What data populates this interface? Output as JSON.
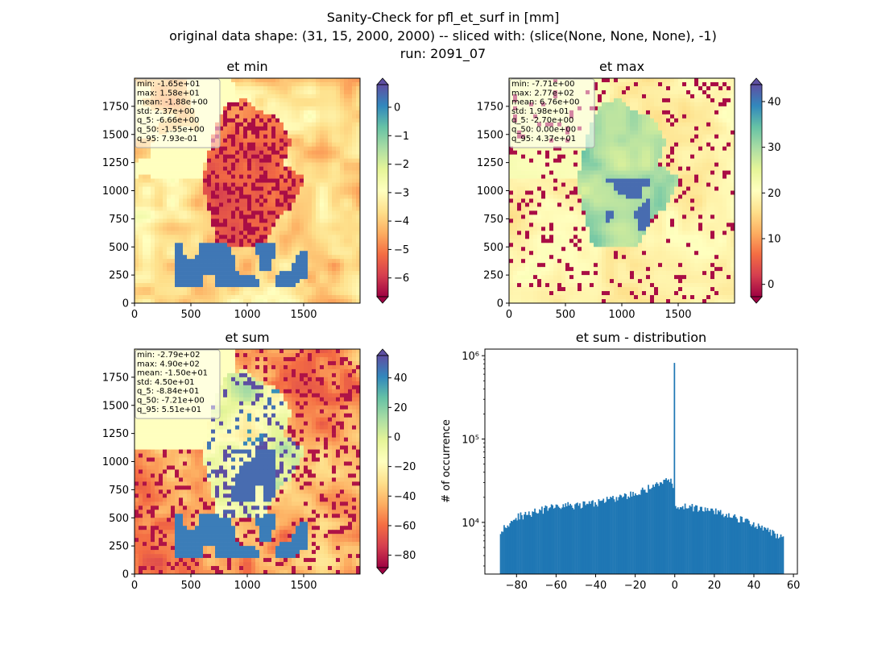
{
  "figure": {
    "title_lines": [
      "Sanity-Check for pfl_et_surf in [mm]",
      "original data shape: (31, 15, 2000, 2000) -- sliced with: (slice(None, None, None), -1)",
      "run: 2091_07"
    ]
  },
  "chart_data": [
    {
      "type": "heatmap",
      "title": "et min",
      "colormap": "Spectral",
      "xlim": [
        0,
        2000
      ],
      "ylim": [
        0,
        2000
      ],
      "xticks": [
        0,
        500,
        1000,
        1500
      ],
      "yticks": [
        0,
        250,
        500,
        750,
        1000,
        1250,
        1500,
        1750
      ],
      "color_range": [
        -6.66,
        0.793
      ],
      "colorbar_ticks": [
        0,
        -1,
        -2,
        -3,
        -4,
        -5,
        -6
      ],
      "colorbar_extend": "both",
      "stats": [
        "min: -1.65e+01",
        "max: 1.58e+01",
        "mean: -1.88e+00",
        "std: 2.37e+00",
        "q_5: -6.66e+00",
        "q_50: -1.55e+00",
        "q_95: 7.93e-01"
      ]
    },
    {
      "type": "heatmap",
      "title": "et max",
      "colormap": "Spectral",
      "xlim": [
        0,
        2000
      ],
      "ylim": [
        0,
        2000
      ],
      "xticks": [
        0,
        500,
        1000,
        1500
      ],
      "yticks": [
        0,
        250,
        500,
        750,
        1000,
        1250,
        1500,
        1750
      ],
      "color_range": [
        -2.7,
        43.7
      ],
      "colorbar_ticks": [
        40,
        30,
        20,
        10,
        0
      ],
      "colorbar_extend": "both",
      "stats": [
        "min: -7.71e+00",
        "max: 2.77e+02",
        "mean: 6.76e+00",
        "std: 1.98e+01",
        "q_5: -2.70e+00",
        "q_50: 0.00e+00",
        "q_95: 4.37e+01"
      ]
    },
    {
      "type": "heatmap",
      "title": "et sum",
      "colormap": "Spectral",
      "xlim": [
        0,
        2000
      ],
      "ylim": [
        0,
        2000
      ],
      "xticks": [
        0,
        500,
        1000,
        1500
      ],
      "yticks": [
        0,
        250,
        500,
        750,
        1000,
        1250,
        1500,
        1750
      ],
      "color_range": [
        -88.4,
        55.1
      ],
      "colorbar_ticks": [
        40,
        20,
        0,
        -20,
        -40,
        -60,
        -80
      ],
      "colorbar_extend": "both",
      "stats": [
        "min: -2.79e+02",
        "max: 4.90e+02",
        "mean: -1.50e+01",
        "std: 4.50e+01",
        "q_5: -8.84e+01",
        "q_50: -7.21e+00",
        "q_95: 5.51e+01"
      ]
    },
    {
      "type": "bar",
      "title": "et sum - distribution",
      "ylabel": "# of occurrence",
      "yscale": "log",
      "xlim": [
        -96,
        62
      ],
      "ylim": [
        2400,
        1200000
      ],
      "xticks": [
        -80,
        -60,
        -40,
        -20,
        0,
        20,
        40,
        60
      ],
      "yticks": [
        {
          "value": 10000,
          "label": "10⁴"
        },
        {
          "value": 100000,
          "label": "10⁵"
        },
        {
          "value": 1000000,
          "label": "10⁶"
        }
      ],
      "bar_color": "#1f77b4",
      "x_range": [
        -88.4,
        55.1
      ],
      "profile_points": [
        [
          -88.4,
          8000
        ],
        [
          -86,
          9000
        ],
        [
          -80,
          11500
        ],
        [
          -70,
          13500
        ],
        [
          -60,
          15500
        ],
        [
          -50,
          16000
        ],
        [
          -40,
          17000
        ],
        [
          -30,
          19500
        ],
        [
          -20,
          22000
        ],
        [
          -10,
          28000
        ],
        [
          -5,
          32000
        ],
        [
          -1.5,
          30000
        ],
        [
          -0.2,
          20000
        ],
        [
          0,
          820000
        ],
        [
          0.3,
          17500
        ],
        [
          1,
          16000
        ],
        [
          10,
          15000
        ],
        [
          20,
          13500
        ],
        [
          30,
          11500
        ],
        [
          40,
          9500
        ],
        [
          50,
          7500
        ],
        [
          55.1,
          6500
        ]
      ]
    }
  ]
}
